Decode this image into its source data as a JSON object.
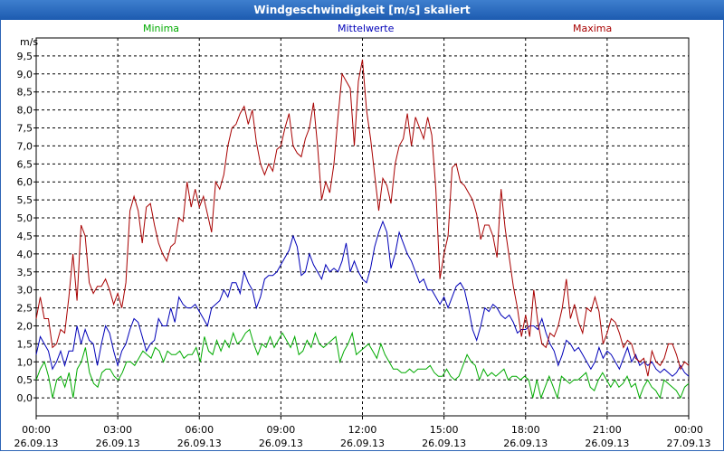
{
  "window": {
    "title": "Windgeschwindigkeit [m/s] skaliert"
  },
  "chart_data": {
    "type": "line",
    "title": "Windgeschwindigkeit [m/s] skaliert",
    "ylabel": "m/s",
    "ylim": [
      -0.5,
      10.0
    ],
    "yticks": [
      "0,0",
      "0,5",
      "1,0",
      "1,5",
      "2,0",
      "2,5",
      "3,0",
      "3,5",
      "4,0",
      "4,5",
      "5,0",
      "5,5",
      "6,0",
      "6,5",
      "7,0",
      "7,5",
      "8,0",
      "8,5",
      "9,0",
      "9,5"
    ],
    "xtick_times": [
      "00:00",
      "03:00",
      "06:00",
      "09:00",
      "12:00",
      "15:00",
      "18:00",
      "21:00",
      "00:00"
    ],
    "xtick_dates": [
      "26.09.13",
      "26.09.13",
      "26.09.13",
      "26.09.13",
      "26.09.13",
      "26.09.13",
      "26.09.13",
      "26.09.13",
      "27.09.13"
    ],
    "grid": true,
    "legend_placement": "top",
    "series": [
      {
        "name": "Minima",
        "color": "#00aa00",
        "values": [
          0.5,
          0.8,
          1.0,
          0.6,
          0.0,
          0.5,
          0.6,
          0.3,
          0.7,
          0.0,
          0.8,
          1.0,
          1.4,
          0.7,
          0.4,
          0.3,
          0.7,
          0.8,
          0.8,
          0.6,
          0.5,
          0.7,
          1.0,
          1.0,
          0.9,
          1.1,
          1.3,
          1.2,
          1.1,
          1.4,
          1.3,
          1.0,
          1.3,
          1.2,
          1.2,
          1.3,
          1.1,
          1.2,
          1.2,
          1.4,
          1.0,
          1.7,
          1.3,
          1.2,
          1.6,
          1.3,
          1.6,
          1.4,
          1.8,
          1.5,
          1.6,
          1.8,
          1.9,
          1.5,
          1.2,
          1.5,
          1.4,
          1.7,
          1.4,
          1.6,
          1.8,
          1.6,
          1.4,
          1.7,
          1.2,
          1.3,
          1.6,
          1.4,
          1.8,
          1.5,
          1.4,
          1.5,
          1.6,
          1.7,
          1.0,
          1.3,
          1.5,
          1.8,
          1.2,
          1.3,
          1.4,
          1.5,
          1.3,
          1.1,
          1.5,
          1.2,
          1.0,
          0.8,
          0.8,
          0.7,
          0.7,
          0.8,
          0.7,
          0.8,
          0.8,
          0.8,
          0.9,
          0.7,
          0.6,
          0.6,
          0.8,
          0.6,
          0.5,
          0.6,
          0.9,
          1.2,
          1.0,
          0.9,
          0.5,
          0.8,
          0.6,
          0.7,
          0.6,
          0.7,
          0.8,
          0.5,
          0.6,
          0.6,
          0.5,
          0.6,
          0.5,
          0.0,
          0.5,
          0.0,
          0.3,
          0.6,
          0.3,
          0.0,
          0.6,
          0.5,
          0.4,
          0.5,
          0.5,
          0.6,
          0.7,
          0.3,
          0.2,
          0.5,
          0.7,
          0.5,
          0.3,
          0.5,
          0.3,
          0.4,
          0.6,
          0.3,
          0.4,
          0.0,
          0.3,
          0.5,
          0.3,
          0.2,
          0.0,
          0.5,
          0.4,
          0.3,
          0.2,
          0.0,
          0.3,
          0.4
        ]
      },
      {
        "name": "Mittelwerte",
        "color": "#0000b8",
        "values": [
          1.2,
          1.7,
          1.5,
          1.3,
          0.8,
          1.0,
          1.3,
          0.9,
          1.3,
          1.3,
          2.0,
          1.5,
          1.9,
          1.6,
          1.5,
          0.9,
          1.5,
          2.0,
          1.8,
          1.3,
          0.9,
          1.3,
          1.5,
          1.9,
          2.2,
          2.1,
          1.7,
          1.3,
          1.5,
          1.6,
          2.2,
          2.0,
          2.0,
          2.5,
          2.1,
          2.8,
          2.6,
          2.5,
          2.5,
          2.6,
          2.4,
          2.2,
          2.0,
          2.5,
          2.6,
          2.7,
          3.0,
          2.8,
          3.2,
          3.2,
          2.9,
          3.5,
          3.2,
          3.0,
          2.5,
          2.8,
          3.3,
          3.4,
          3.4,
          3.5,
          3.7,
          3.9,
          4.1,
          4.5,
          4.2,
          3.4,
          3.5,
          4.0,
          3.7,
          3.5,
          3.3,
          3.7,
          3.5,
          3.6,
          3.5,
          3.8,
          4.3,
          3.5,
          3.8,
          3.5,
          3.3,
          3.2,
          3.6,
          4.2,
          4.6,
          4.9,
          4.6,
          3.6,
          4.0,
          4.6,
          4.3,
          4.0,
          3.8,
          3.5,
          3.2,
          3.3,
          3.0,
          3.0,
          2.8,
          2.6,
          2.8,
          2.5,
          2.8,
          3.1,
          3.2,
          3.0,
          2.5,
          1.9,
          1.6,
          2.0,
          2.5,
          2.4,
          2.6,
          2.5,
          2.3,
          2.2,
          2.3,
          2.1,
          1.8,
          1.9,
          1.9,
          2.0,
          2.0,
          1.9,
          2.2,
          1.8,
          1.5,
          1.3,
          0.9,
          1.2,
          1.6,
          1.5,
          1.3,
          1.4,
          1.2,
          1.0,
          0.8,
          1.0,
          1.4,
          1.1,
          1.3,
          1.2,
          1.0,
          0.8,
          1.1,
          1.4,
          1.0,
          1.2,
          0.9,
          1.0,
          0.9,
          1.0,
          0.8,
          0.7,
          0.8,
          0.7,
          0.6,
          0.7,
          0.9,
          0.7,
          0.6
        ]
      },
      {
        "name": "Maxima",
        "color": "#a80000",
        "values": [
          2.2,
          2.8,
          2.2,
          2.2,
          1.4,
          1.5,
          1.9,
          1.8,
          2.8,
          4.0,
          2.7,
          4.8,
          4.5,
          3.2,
          2.9,
          3.1,
          3.1,
          3.3,
          3.0,
          2.6,
          2.9,
          2.5,
          3.2,
          5.2,
          5.6,
          5.2,
          4.3,
          5.3,
          5.4,
          4.8,
          4.3,
          4.0,
          3.8,
          4.2,
          4.3,
          5.0,
          4.9,
          6.0,
          5.3,
          5.8,
          5.3,
          5.6,
          5.1,
          4.6,
          6.0,
          5.8,
          6.2,
          7.0,
          7.5,
          7.6,
          7.9,
          8.1,
          7.6,
          8.0,
          7.1,
          6.5,
          6.2,
          6.5,
          6.3,
          6.9,
          7.0,
          7.5,
          7.9,
          7.0,
          6.8,
          6.7,
          7.2,
          7.5,
          8.2,
          7.0,
          5.5,
          6.0,
          5.7,
          6.5,
          7.8,
          9.0,
          8.8,
          8.6,
          7.0,
          8.8,
          9.4,
          8.0,
          7.2,
          6.2,
          5.2,
          6.1,
          5.9,
          5.4,
          6.5,
          7.0,
          7.2,
          7.9,
          7.0,
          7.8,
          7.5,
          7.2,
          7.8,
          7.3,
          5.8,
          3.3,
          4.0,
          4.5,
          6.4,
          6.5,
          6.0,
          5.9,
          5.7,
          5.5,
          5.1,
          4.4,
          4.8,
          4.8,
          4.5,
          3.9,
          5.8,
          4.7,
          3.9,
          3.1,
          2.5,
          1.7,
          2.3,
          1.7,
          3.0,
          2.1,
          1.5,
          1.4,
          1.8,
          1.7,
          2.0,
          2.5,
          3.3,
          2.2,
          2.6,
          2.1,
          1.8,
          2.5,
          2.4,
          2.8,
          2.4,
          1.5,
          1.8,
          2.2,
          2.1,
          1.8,
          1.4,
          1.6,
          1.5,
          1.1,
          1.0,
          1.1,
          0.6,
          1.3,
          1.0,
          0.9,
          1.1,
          1.5,
          1.5,
          1.2,
          0.8,
          1.0,
          0.9
        ]
      }
    ]
  }
}
